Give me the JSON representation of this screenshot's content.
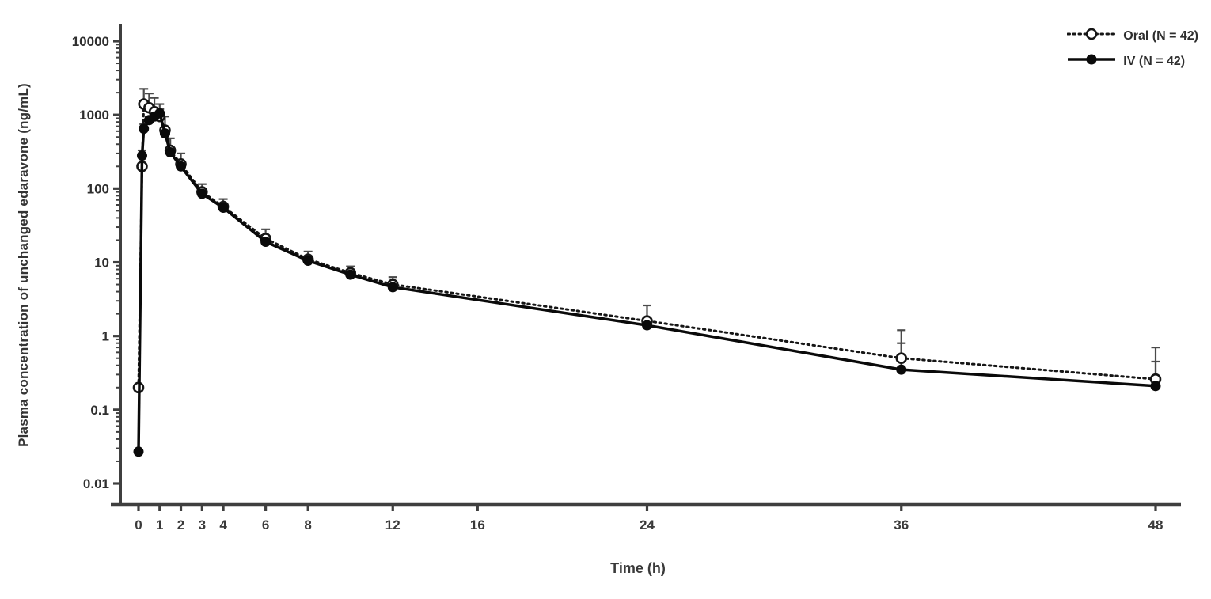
{
  "figure": {
    "x_axis_label": "Time (h)",
    "y_axis_label": "Plasma concentration of unchanged edaravone (ng/mL)"
  },
  "legend": {
    "position": "top-right",
    "items": [
      {
        "id": "oral",
        "label": "Oral (N = 42)",
        "line": "dotted",
        "marker": "open-circle",
        "color": "#161616"
      },
      {
        "id": "iv",
        "label": "IV (N = 42)",
        "line": "solid",
        "marker": "filled-circle",
        "color": "#0a0a0a"
      }
    ]
  },
  "chart_data": {
    "type": "line",
    "title": "",
    "xlabel": "Time (h)",
    "ylabel": "Plasma concentration of unchanged edaravone (ng/mL)",
    "x_scale": "linear",
    "y_scale": "log10",
    "xlim": [
      0,
      48
    ],
    "ylim": [
      0.01,
      10000
    ],
    "grid": false,
    "legend_position": "top-right",
    "x_ticks": [
      0,
      1,
      2,
      3,
      4,
      6,
      8,
      12,
      16,
      24,
      36,
      48
    ],
    "x_tick_labels": [
      "0",
      "1",
      "2",
      "3",
      "4",
      "6",
      "8",
      "12",
      "16",
      "24",
      "36",
      "48"
    ],
    "y_ticks": [
      10000,
      1000,
      100,
      10,
      1,
      0.1,
      0.01
    ],
    "y_tick_labels": [
      "10000",
      "1000",
      "100",
      "10",
      "1",
      "0.1",
      "0.01"
    ],
    "x": [
      0,
      0.167,
      0.25,
      0.5,
      0.75,
      1,
      1.25,
      1.5,
      2,
      3,
      4,
      6,
      8,
      10,
      12,
      24,
      36,
      48
    ],
    "series": [
      {
        "name": "Oral (N = 42)",
        "line": "dotted",
        "marker": "open-circle",
        "color": "#161616",
        "values": [
          0.2,
          200,
          1400,
          1250,
          1100,
          950,
          620,
          330,
          215,
          90,
          57,
          21,
          11,
          7.2,
          5.0,
          1.6,
          0.5,
          0.26
        ],
        "sd_upper": [
          null,
          330,
          2250,
          1950,
          1700,
          1400,
          950,
          480,
          300,
          115,
          72,
          28,
          14,
          8.8,
          6.3,
          2.6,
          1.2,
          0.7
        ]
      },
      {
        "name": "IV (N = 42)",
        "line": "solid",
        "marker": "filled-circle",
        "color": "#0a0a0a",
        "values": [
          0.027,
          280,
          650,
          850,
          950,
          1050,
          560,
          310,
          200,
          85,
          55,
          19,
          10.5,
          6.8,
          4.6,
          1.4,
          0.35,
          0.21
        ],
        "sd_upper": [
          null,
          null,
          750,
          950,
          1050,
          1200,
          640,
          360,
          230,
          95,
          60,
          22,
          12,
          7.4,
          5.2,
          1.7,
          0.8,
          0.45
        ]
      }
    ]
  }
}
